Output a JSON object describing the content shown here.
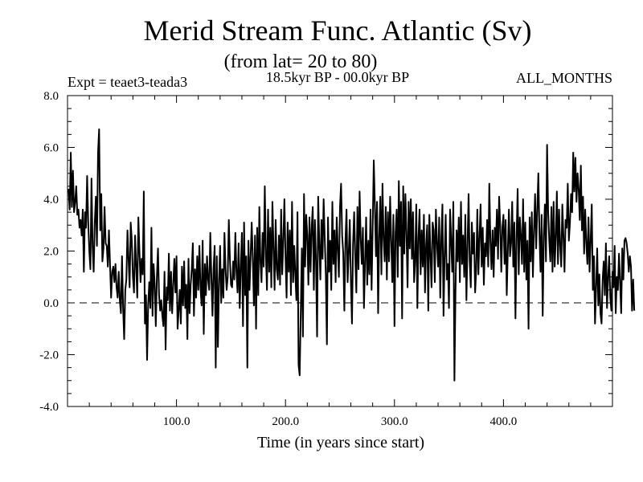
{
  "chart_data": {
    "type": "line",
    "title": "Merid Stream Func. Atlantic (Sv)",
    "subtitle": "(from lat= 20 to 80)",
    "experiment_label": "Expt = teaet3-teada3",
    "period_label": "18.5kyr BP - 00.0kyr BP",
    "months_label": "ALL_MONTHS",
    "xlabel": "Time (in years since start)",
    "ylabel": "",
    "xlim": [
      0,
      500
    ],
    "ylim": [
      -4,
      8
    ],
    "x_ticks": [
      100,
      200,
      300,
      400
    ],
    "x_tick_labels": [
      "100.0",
      "200.0",
      "300.0",
      "400.0"
    ],
    "y_ticks": [
      -4,
      -2,
      0,
      2,
      4,
      6,
      8
    ],
    "y_tick_labels": [
      "-4.0",
      "-2.0",
      "0.0",
      "2.0",
      "4.0",
      "6.0",
      "8.0"
    ],
    "reference_line": {
      "y": 0,
      "style": "dashed"
    },
    "grid": false,
    "series": [
      {
        "name": "meridional stream function",
        "x_start": 1,
        "x_step": 1,
        "values": [
          4.4,
          3.6,
          5.8,
          3.7,
          5.1,
          3.5,
          3.9,
          4.5,
          3.4,
          3.6,
          2.9,
          3.2,
          2.6,
          3.6,
          1.2,
          3.5,
          2.9,
          4.9,
          3.1,
          2.0,
          1.3,
          4.8,
          2.2,
          1.2,
          3.1,
          4.1,
          2.2,
          5.8,
          6.7,
          2.8,
          4.2,
          1.6,
          2.1,
          3.7,
          2.3,
          2.2,
          1.4,
          2.8,
          1.5,
          0.2,
          1.2,
          1.4,
          0.8,
          1.5,
          0.6,
          0.2,
          1.2,
          0.1,
          -0.4,
          1.8,
          -0.2,
          -1.4,
          0.5,
          0.9,
          2.8,
          1.7,
          0.6,
          3.1,
          2.4,
          1.0,
          0.4,
          2.6,
          1.4,
          0.2,
          3.3,
          2.0,
          0.8,
          1.7,
          1.1,
          4.3,
          -0.8,
          0.3,
          -2.2,
          -0.1,
          0.8,
          -0.2,
          2.9,
          -0.5,
          1.5,
          0.7,
          -0.9,
          1.0,
          2.1,
          0.3,
          -0.3,
          0.1,
          -0.5,
          -0.9,
          1.2,
          -1.8,
          0.6,
          0.1,
          1.9,
          -0.3,
          1.2,
          -0.4,
          0.7,
          1.7,
          0.4,
          1.8,
          -1.0,
          -0.3,
          0.5,
          -0.8,
          1.4,
          -0.1,
          1.6,
          -0.2,
          0.7,
          -1.4,
          1.7,
          -0.4,
          0.7,
          1.3,
          2.3,
          -0.5,
          1.3,
          0.2,
          1.8,
          0.5,
          2.2,
          0.6,
          -0.1,
          2.4,
          -1.2,
          1.5,
          0.3,
          1.8,
          0.9,
          0.5,
          2.7,
          1.0,
          -0.5,
          1.3,
          2.2,
          -2.5,
          1.8,
          -1.7,
          0.8,
          2.2,
          0.0,
          1.3,
          0.2,
          2.7,
          1.3,
          0.5,
          1.0,
          3.2,
          1.7,
          0.7,
          0.6,
          1.6,
          0.9,
          2.7,
          1.2,
          0.4,
          2.3,
          -0.2,
          1.4,
          2.7,
          -0.9,
          3.1,
          0.3,
          1.8,
          -2.5,
          2.4,
          0.5,
          1.8,
          3.1,
          1.7,
          -0.1,
          2.6,
          -1.0,
          2.9,
          0.3,
          3.7,
          1.6,
          0.8,
          2.7,
          1.4,
          4.5,
          1.9,
          0.5,
          3.6,
          1.2,
          2.9,
          0.6,
          3.9,
          2.1,
          0.5,
          3.2,
          1.3,
          0.9,
          2.6,
          0.7,
          3.6,
          1.1,
          2.4,
          4.0,
          1.8,
          0.2,
          3.1,
          1.2,
          2.8,
          0.3,
          3.9,
          0.8,
          2.2,
          1.1,
          0.1,
          3.5,
          -2.4,
          -2.8,
          -0.4,
          2.1,
          -1.3,
          4.2,
          1.4,
          3.4,
          2.6,
          0.7,
          3.3,
          1.2,
          2.9,
          3.7,
          0.5,
          3.2,
          1.6,
          -1.3,
          4.1,
          2.3,
          0.9,
          3.2,
          1.7,
          4.0,
          2.5,
          1.1,
          -1.6,
          3.3,
          1.2,
          2.4,
          0.5,
          3.9,
          1.5,
          2.8,
          0.8,
          3.3,
          2.1,
          1.0,
          3.7,
          4.6,
          2.6,
          1.9,
          -0.3,
          2.4,
          3.6,
          0.8,
          1.9,
          3.2,
          0.9,
          -0.8,
          2.3,
          3.5,
          1.8,
          0.4,
          3.7,
          1.3,
          4.3,
          2.5,
          1.5,
          2.9,
          -0.2,
          1.6,
          3.3,
          0.7,
          2.4,
          1.1,
          3.6,
          0.5,
          2.9,
          5.5,
          3.8,
          1.8,
          3.9,
          -0.4,
          2.6,
          4.1,
          1.1,
          4.6,
          2.5,
          1.6,
          3.7,
          0.9,
          3.5,
          1.6,
          4.1,
          2.4,
          0.8,
          3.4,
          -0.9,
          2.7,
          3.6,
          1.0,
          4.7,
          2.2,
          3.9,
          -0.6,
          4.5,
          1.9,
          4.2,
          2.7,
          0.6,
          3.9,
          2.1,
          4.0,
          1.7,
          3.5,
          0.8,
          1.6,
          3.8,
          -0.2,
          2.5,
          3.6,
          1.1,
          2.8,
          1.4,
          3.4,
          0.4,
          2.2,
          3.0,
          -0.3,
          3.4,
          1.9,
          0.6,
          3.1,
          2.8,
          0.8,
          3.6,
          2.3,
          1.4,
          3.3,
          0.2,
          2.5,
          3.8,
          -0.5,
          1.8,
          3.4,
          0.9,
          1.5,
          -0.2,
          3.6,
          2.4,
          1.2,
          3.9,
          -3.0,
          0.5,
          2.8,
          1.6,
          3.3,
          0.8,
          3.9,
          1.5,
          2.6,
          1.0,
          3.4,
          0.1,
          2.2,
          4.2,
          1.6,
          0.6,
          3.1,
          1.9,
          2.7,
          0.4,
          1.3,
          3.6,
          1.1,
          2.5,
          3.8,
          1.4,
          2.9,
          0.7,
          2.3,
          1.8,
          3.2,
          1.4,
          4.6,
          2.4,
          1.3,
          2.8,
          1.0,
          2.9,
          2.2,
          3.6,
          1.7,
          4.1,
          3.0,
          1.2,
          2.9,
          3.4,
          1.5,
          3.2,
          0.3,
          2.0,
          3.6,
          1.8,
          2.3,
          3.9,
          1.4,
          3.1,
          -0.6,
          2.5,
          4.4,
          1.1,
          3.3,
          2.6,
          1.5,
          4.0,
          1.2,
          3.1,
          0.9,
          2.4,
          -1.0,
          3.3,
          1.6,
          3.5,
          1.0,
          2.8,
          4.2,
          2.1,
          3.6,
          5.0,
          2.7,
          1.2,
          3.4,
          -0.5,
          2.6,
          3.8,
          1.6,
          6.1,
          3.5,
          2.4,
          1.6,
          3.7,
          1.2,
          3.9,
          1.4,
          2.5,
          4.3,
          1.5,
          3.6,
          2.2,
          1.4,
          3.8,
          2.6,
          1.2,
          3.2,
          2.9,
          4.6,
          2.4,
          3.1,
          4.2,
          3.5,
          5.8,
          4.3,
          5.6,
          3.9,
          5.0,
          4.4,
          3.2,
          5.3,
          2.8,
          4.1,
          1.9,
          3.6,
          2.3,
          1.5,
          3.3,
          1.2,
          2.4,
          3.8,
          0.5,
          1.8,
          -0.8,
          0.6,
          2.1,
          -0.1,
          1.1,
          -0.4,
          -0.8,
          0.9,
          1.6,
          0.3,
          2.3,
          -0.2,
          1.0,
          1.8,
          0.2,
          -0.3,
          1.2,
          0.6,
          2.2,
          -0.4,
          1.0,
          0.5,
          1.9,
          0.8,
          -0.4,
          2.1,
          0.9,
          2.4,
          2.5,
          2.3,
          1.9,
          1.2,
          1.8,
          1.4,
          -0.3,
          0.9,
          -0.3
        ]
      }
    ]
  }
}
